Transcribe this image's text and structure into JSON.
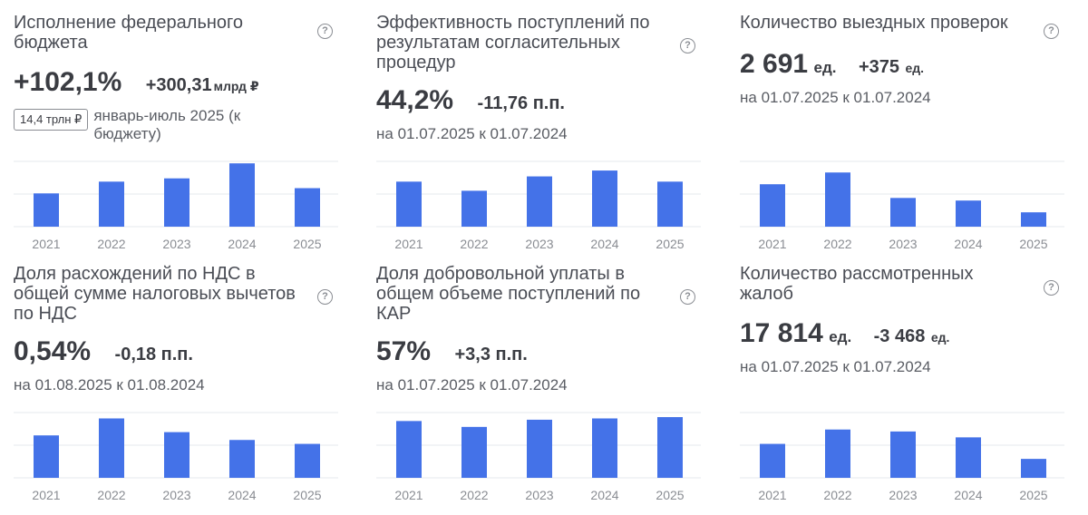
{
  "colors": {
    "bar": "#4472e8",
    "grid": "#e6e8ec"
  },
  "cards": [
    {
      "title": "Исполнение федерального бюджета",
      "value": "+102,1%",
      "value_unit": "",
      "delta": "+300,31",
      "delta_unit": "млрд ₽",
      "badge": "14,4 трлн ₽",
      "subtitle": "январь-июль 2025 (к бюджету)"
    },
    {
      "title": "Эффективность поступлений по результатам согласительных процедур",
      "value": "44,2%",
      "value_unit": "",
      "delta": "-11,76 п.п.",
      "delta_unit": "",
      "badge": "",
      "subtitle": "на 01.07.2025 к 01.07.2024"
    },
    {
      "title": "Количество выездных проверок",
      "value": "2 691",
      "value_unit": "ед.",
      "delta": "+375",
      "delta_unit": "ед.",
      "badge": "",
      "subtitle": "на 01.07.2025 к 01.07.2024"
    },
    {
      "title": "Доля расхождений по НДС в общей сумме налоговых вычетов по НДС",
      "value": "0,54%",
      "value_unit": "",
      "delta": "-0,18 п.п.",
      "delta_unit": "",
      "badge": "",
      "subtitle": "на 01.08.2025 к 01.08.2024"
    },
    {
      "title": "Доля добровольной уплаты в общем объеме поступлений по КАР",
      "value": "57%",
      "value_unit": "",
      "delta": "+3,3 п.п.",
      "delta_unit": "",
      "badge": "",
      "subtitle": "на 01.07.2025 к 01.07.2024"
    },
    {
      "title": "Количество рассмотренных жалоб",
      "value": "17 814",
      "value_unit": "ед.",
      "delta": "-3 468",
      "delta_unit": "ед.",
      "badge": "",
      "subtitle": "на 01.07.2025 к 01.07.2024"
    }
  ],
  "chart_data": [
    {
      "type": "bar",
      "categories": [
        "2021",
        "2022",
        "2023",
        "2024",
        "2025"
      ],
      "values": [
        0.51,
        0.69,
        0.74,
        0.97,
        0.59
      ],
      "ylim": [
        0,
        1
      ],
      "grid": true
    },
    {
      "type": "bar",
      "categories": [
        "2021",
        "2022",
        "2023",
        "2024",
        "2025"
      ],
      "values": [
        0.69,
        0.55,
        0.77,
        0.86,
        0.69
      ],
      "ylim": [
        0,
        1
      ],
      "grid": true
    },
    {
      "type": "bar",
      "categories": [
        "2021",
        "2022",
        "2023",
        "2024",
        "2025"
      ],
      "values": [
        0.65,
        0.83,
        0.44,
        0.4,
        0.22
      ],
      "ylim": [
        0,
        1
      ],
      "grid": true
    },
    {
      "type": "bar",
      "categories": [
        "2021",
        "2022",
        "2023",
        "2024",
        "2025"
      ],
      "values": [
        0.65,
        0.91,
        0.7,
        0.58,
        0.52
      ],
      "ylim": [
        0,
        1
      ],
      "grid": true
    },
    {
      "type": "bar",
      "categories": [
        "2021",
        "2022",
        "2023",
        "2024",
        "2025"
      ],
      "values": [
        0.87,
        0.78,
        0.89,
        0.91,
        0.93
      ],
      "ylim": [
        0,
        1
      ],
      "grid": true
    },
    {
      "type": "bar",
      "categories": [
        "2021",
        "2022",
        "2023",
        "2024",
        "2025"
      ],
      "values": [
        0.52,
        0.74,
        0.71,
        0.62,
        0.29
      ],
      "ylim": [
        0,
        1
      ],
      "grid": true
    }
  ]
}
